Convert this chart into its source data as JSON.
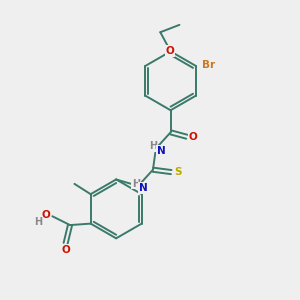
{
  "background_color": "#efefef",
  "bond_color": "#3a7a6a",
  "atom_colors": {
    "Br": "#cc7722",
    "O": "#cc1100",
    "N": "#1111bb",
    "S": "#bbaa00",
    "H": "#888888",
    "C": "#3a7a6a"
  },
  "figsize": [
    3.0,
    3.0
  ],
  "dpi": 100
}
